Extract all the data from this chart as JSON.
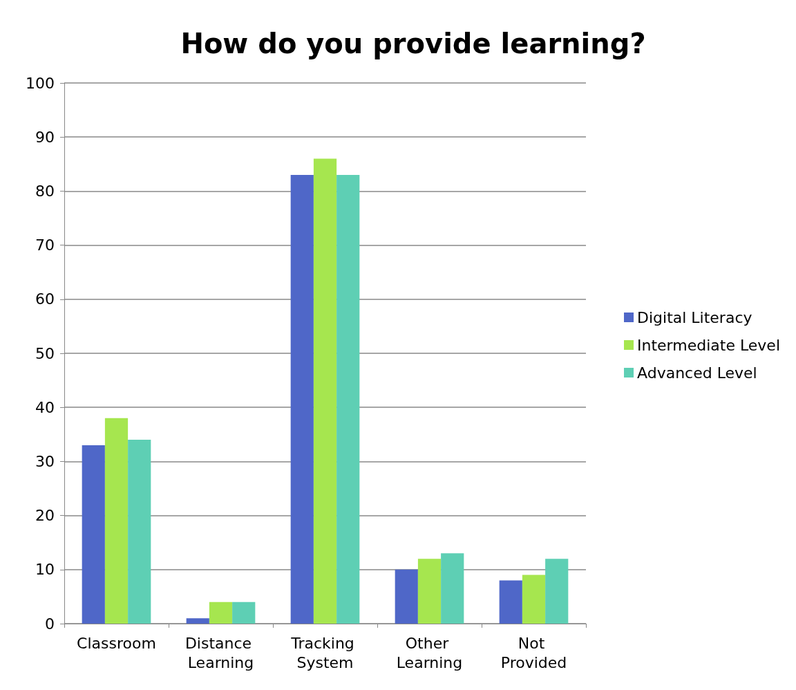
{
  "chart_data": {
    "type": "bar",
    "title": "How do you provide learning?",
    "categories": [
      "Classroom",
      "Distance Learning",
      "Tracking System",
      "Other Learning",
      "Not Provided"
    ],
    "series": [
      {
        "name": "Digital Literacy",
        "color": "#4f67c8",
        "values": [
          33,
          1,
          83,
          10,
          8
        ]
      },
      {
        "name": "Intermediate Level",
        "color": "#a6e64f",
        "values": [
          38,
          4,
          86,
          12,
          9
        ]
      },
      {
        "name": "Advanced Level",
        "color": "#5ecfb4",
        "values": [
          34,
          4,
          83,
          13,
          12
        ]
      }
    ],
    "ylim": [
      0,
      100
    ],
    "yticks": [
      0,
      10,
      20,
      30,
      40,
      50,
      60,
      70,
      80,
      90,
      100
    ],
    "grid": "y",
    "legend": "right"
  }
}
